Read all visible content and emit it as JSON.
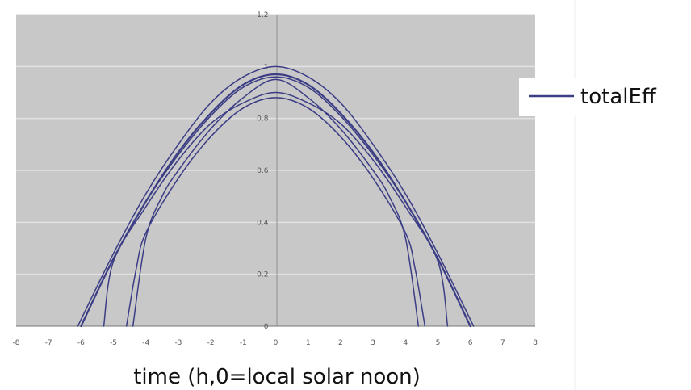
{
  "chart_data": {
    "type": "line",
    "title": "",
    "xlabel": "time (h,0=local solar noon)",
    "ylabel": "",
    "xlim": [
      -8,
      8
    ],
    "ylim": [
      0,
      1.2
    ],
    "x_ticks": [
      "-8",
      "-7",
      "-6",
      "-5",
      "-4",
      "-3",
      "-2",
      "-1",
      "0",
      "1",
      "2",
      "3",
      "4",
      "5",
      "6",
      "7",
      "8"
    ],
    "y_ticks": [
      "0",
      "0.2",
      "0.4",
      "0.6",
      "0.8",
      "1",
      "1.2"
    ],
    "grid": "horizontal",
    "legend": {
      "position": "right",
      "entries": [
        "totalEff"
      ]
    },
    "colors": {
      "series": "#3b3d85",
      "plot_background": "#c8c8c8",
      "grid": "#e2e2e2",
      "page": "#ffffff"
    },
    "series": [
      {
        "name": "totalEff",
        "x": [
          -6.0,
          -5.0,
          -4.0,
          -3.0,
          -2.0,
          -1.0,
          0.0,
          1.0,
          2.0,
          3.0,
          4.0,
          5.0,
          6.0
        ],
        "y": [
          0.0,
          0.26,
          0.48,
          0.67,
          0.82,
          0.93,
          0.97,
          0.93,
          0.82,
          0.67,
          0.48,
          0.26,
          0.0
        ]
      },
      {
        "x": [
          -6.1,
          -5.0,
          -4.0,
          -3.0,
          -2.0,
          -1.0,
          0.0,
          1.0,
          2.0,
          3.0,
          4.0,
          5.0,
          6.1
        ],
        "y": [
          0.0,
          0.28,
          0.51,
          0.7,
          0.86,
          0.96,
          1.0,
          0.96,
          0.86,
          0.7,
          0.51,
          0.28,
          0.0
        ]
      },
      {
        "x": [
          -6.0,
          -5.0,
          -4.0,
          -3.0,
          -2.0,
          -1.0,
          0.0,
          1.0,
          2.0,
          3.0,
          4.0,
          5.0,
          6.0
        ],
        "y": [
          0.0,
          0.26,
          0.48,
          0.66,
          0.81,
          0.92,
          0.96,
          0.92,
          0.81,
          0.66,
          0.48,
          0.26,
          0.0
        ]
      },
      {
        "x": [
          -5.3,
          -5.0,
          -4.0,
          -3.0,
          -2.0,
          -1.0,
          0.0,
          1.0,
          2.0,
          3.0,
          4.0,
          5.0,
          5.3
        ],
        "y": [
          0.0,
          0.25,
          0.46,
          0.64,
          0.78,
          0.86,
          0.9,
          0.86,
          0.78,
          0.64,
          0.46,
          0.25,
          0.0
        ]
      },
      {
        "x": [
          -4.6,
          -4.3,
          -4.0,
          -3.0,
          -2.0,
          -1.0,
          0.0,
          1.0,
          2.0,
          3.0,
          4.0,
          4.3,
          4.6
        ],
        "y": [
          0.0,
          0.22,
          0.36,
          0.57,
          0.73,
          0.84,
          0.88,
          0.84,
          0.73,
          0.57,
          0.36,
          0.22,
          0.0
        ]
      },
      {
        "x": [
          -4.4,
          -4.0,
          -3.5,
          -3.0,
          -2.0,
          -1.0,
          0.0,
          1.0,
          2.0,
          3.0,
          3.5,
          4.0,
          4.4
        ],
        "y": [
          0.0,
          0.34,
          0.5,
          0.6,
          0.76,
          0.88,
          0.95,
          0.88,
          0.76,
          0.6,
          0.5,
          0.34,
          0.0
        ]
      }
    ]
  }
}
